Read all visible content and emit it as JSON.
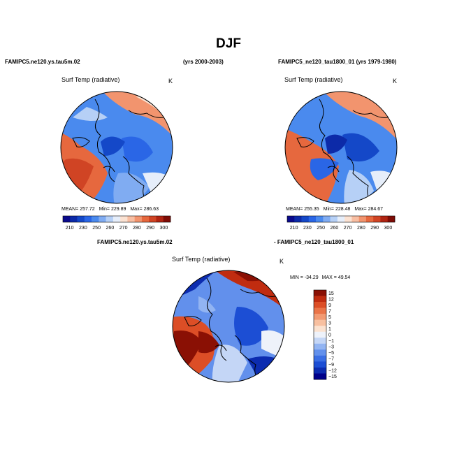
{
  "page": {
    "season_title": "DJF",
    "case1_title": "FAMIPC5.ne120.ys.tau5m.02",
    "case1_years": "(yrs 2000-2003)",
    "case2_title": "FAMIPC5_ne120_tau1800_01 (yrs 1979-1980)",
    "diff_title_left": "FAMIPC5.ne120.ys.tau5m.02",
    "diff_title_right": "- FAMIPC5_ne120_tau1800_01"
  },
  "colors": {
    "abs_scale": [
      "#0a0a8c",
      "#0c2aa8",
      "#1448c8",
      "#2a66e6",
      "#4a8aee",
      "#80acf2",
      "#b6d0f6",
      "#e6eefa",
      "#fbe2d2",
      "#f8bea2",
      "#f2946e",
      "#e6683e",
      "#d04424",
      "#b02412",
      "#7e0c06"
    ],
    "diff_scale": [
      "#00008a",
      "#0c2cb0",
      "#1c4ed4",
      "#3a6ee4",
      "#6290ec",
      "#92b4f2",
      "#c4d6f6",
      "#eef2fa",
      "#fbe2d0",
      "#f8c0a0",
      "#f29a72",
      "#ea7448",
      "#dc4e26",
      "#c02c10",
      "#8a1004"
    ]
  },
  "chart_data": [
    {
      "type": "heatmap",
      "name": "case1-surface-temperature",
      "projection": "north-polar-stereographic",
      "title": "Surf Temp (radiative)",
      "units": "K",
      "stats": {
        "mean_label": "MEAN=",
        "mean": "257.72",
        "min_label": "Min=",
        "min": "229.89",
        "max_label": "Max=",
        "max": "286.63"
      },
      "colorbar": {
        "orientation": "horizontal",
        "levels": 15,
        "ticks": [
          "210",
          "230",
          "250",
          "260",
          "270",
          "280",
          "290",
          "300"
        ]
      }
    },
    {
      "type": "heatmap",
      "name": "case2-surface-temperature",
      "projection": "north-polar-stereographic",
      "title": "Surf Temp (radiative)",
      "units": "K",
      "stats": {
        "mean_label": "MEAN=",
        "mean": "255.35",
        "min_label": "Min=",
        "min": "228.48",
        "max_label": "Max=",
        "max": "284.67"
      },
      "colorbar": {
        "orientation": "horizontal",
        "levels": 15,
        "ticks": [
          "210",
          "230",
          "250",
          "260",
          "270",
          "280",
          "290",
          "300"
        ]
      }
    },
    {
      "type": "heatmap",
      "name": "difference-surface-temperature",
      "projection": "north-polar-stereographic",
      "title": "Surf Temp (radiative)",
      "units": "K",
      "stats": {
        "min_label": "MIN =",
        "min": "-34.29",
        "max_label": "MAX =",
        "max": "49.54"
      },
      "colorbar": {
        "orientation": "vertical",
        "levels": 15,
        "ticks": [
          "15",
          "12",
          "9",
          "7",
          "5",
          "3",
          "1",
          "0",
          "−1",
          "−3",
          "−5",
          "−7",
          "−9",
          "−12",
          "−15"
        ]
      }
    }
  ]
}
